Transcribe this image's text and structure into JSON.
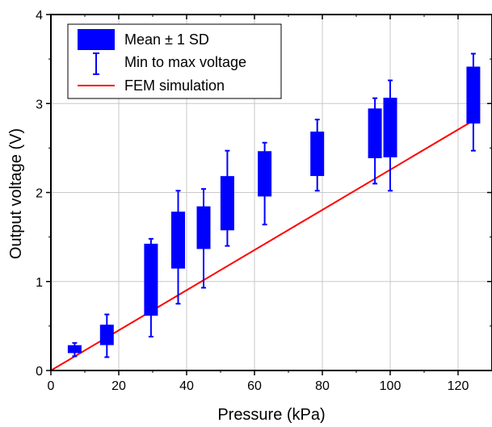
{
  "chart_data": {
    "type": "box",
    "xlabel": "Pressure (kPa)",
    "ylabel": "Output voltage (V)",
    "xlim": [
      0,
      130
    ],
    "ylim": [
      0,
      4
    ],
    "xticks": [
      "0",
      "20",
      "40",
      "60",
      "80",
      "100",
      "120"
    ],
    "yticks": [
      "0",
      "1",
      "2",
      "3",
      "4"
    ],
    "grid": true,
    "legend_position": "top-left",
    "colors": {
      "box": "#0000ff",
      "fem": "#ff0000",
      "grid": "#c8c8c8"
    },
    "legend": {
      "box_label": "Mean ± 1 SD",
      "whisker_label": "Min to max voltage",
      "line_label": "FEM simulation"
    },
    "boxes": [
      {
        "x": 7,
        "low": 0.2,
        "high": 0.28,
        "min": 0.16,
        "max": 0.31
      },
      {
        "x": 16.5,
        "low": 0.29,
        "high": 0.51,
        "min": 0.15,
        "max": 0.63
      },
      {
        "x": 29.5,
        "low": 0.62,
        "high": 1.42,
        "min": 0.38,
        "max": 1.48
      },
      {
        "x": 37.5,
        "low": 1.15,
        "high": 1.78,
        "min": 0.75,
        "max": 2.02
      },
      {
        "x": 45,
        "low": 1.37,
        "high": 1.84,
        "min": 0.93,
        "max": 2.04
      },
      {
        "x": 52,
        "low": 1.58,
        "high": 2.18,
        "min": 1.4,
        "max": 2.47
      },
      {
        "x": 63,
        "low": 1.96,
        "high": 2.46,
        "min": 1.64,
        "max": 2.56
      },
      {
        "x": 78.5,
        "low": 2.19,
        "high": 2.68,
        "min": 2.02,
        "max": 2.82
      },
      {
        "x": 95.5,
        "low": 2.39,
        "high": 2.94,
        "min": 2.1,
        "max": 3.06
      },
      {
        "x": 100,
        "low": 2.4,
        "high": 3.06,
        "min": 2.02,
        "max": 3.26
      },
      {
        "x": 124.5,
        "low": 2.78,
        "high": 3.41,
        "min": 2.47,
        "max": 3.56
      }
    ],
    "series": [
      {
        "name": "FEM simulation",
        "x": [
          0,
          125
        ],
        "y": [
          0,
          2.82
        ]
      }
    ]
  }
}
